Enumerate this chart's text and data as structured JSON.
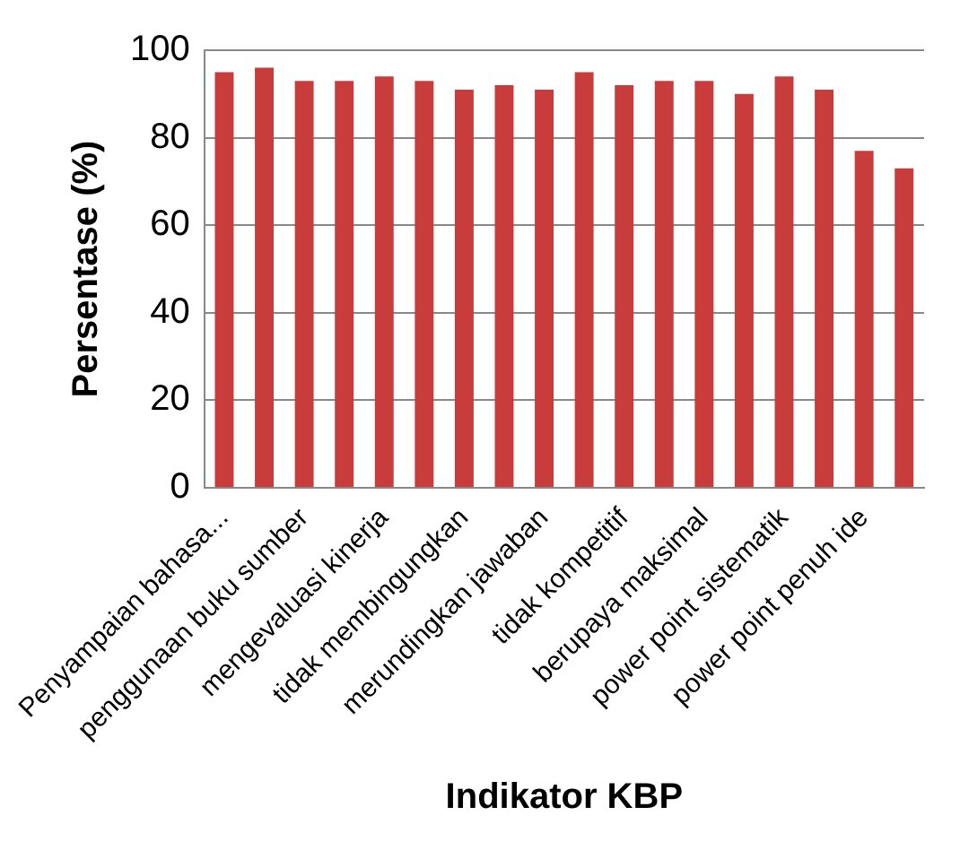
{
  "chart_data": {
    "type": "bar",
    "xlabel": "Indikator KBP",
    "ylabel": "Persentase (%)",
    "categories": [
      "Penyampaian bahasa...",
      null,
      "penggunaan buku sumber",
      null,
      "mengevaluasi kinerja",
      null,
      "tidak membingungkan",
      null,
      "merundingkan jawaban",
      null,
      "tidak kompetitif",
      null,
      "berupaya maksimal",
      null,
      "power point sistematik",
      null,
      "power point penuh ide",
      null
    ],
    "values": [
      95,
      96,
      93,
      93,
      94,
      93,
      91,
      92,
      91,
      95,
      92,
      93,
      93,
      90,
      94,
      91,
      77,
      73
    ],
    "color": "#c83c3c",
    "ylim": [
      0,
      100
    ],
    "yticks": [
      0,
      20,
      40,
      60,
      80,
      100
    ],
    "grid": "y",
    "legend": false
  }
}
